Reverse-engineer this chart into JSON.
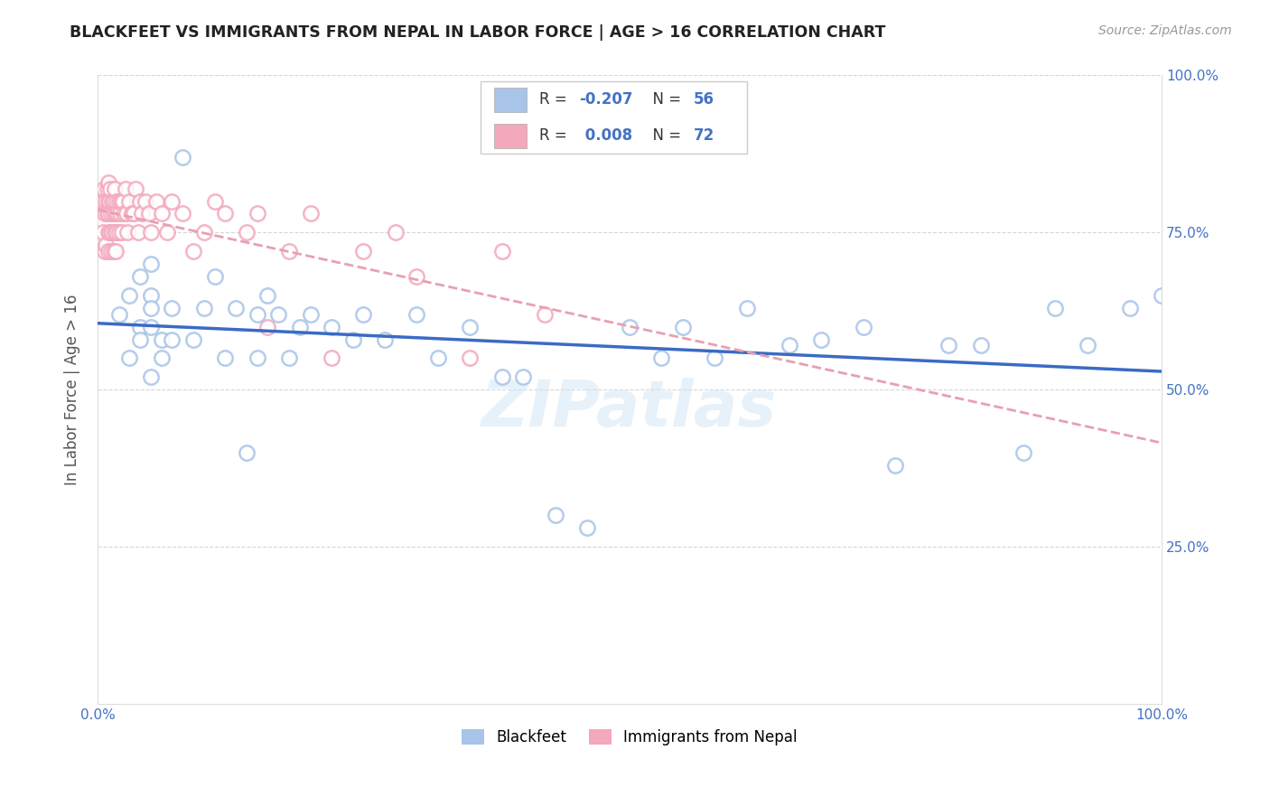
{
  "title": "BLACKFEET VS IMMIGRANTS FROM NEPAL IN LABOR FORCE | AGE > 16 CORRELATION CHART",
  "source": "Source: ZipAtlas.com",
  "ylabel": "In Labor Force | Age > 16",
  "blackfeet_R": -0.207,
  "blackfeet_N": 56,
  "nepal_R": 0.008,
  "nepal_N": 72,
  "blackfeet_color": "#a8c4e8",
  "nepal_color": "#f4a8bc",
  "blackfeet_line_color": "#3a6bc4",
  "nepal_line_color": "#e8a0b0",
  "R_text_color": "#4472c4",
  "background_color": "#ffffff",
  "grid_color": "#cccccc",
  "tick_label_color": "#4472c4",
  "title_color": "#222222",
  "source_color": "#999999",
  "ylabel_color": "#555555",
  "watermark": "ZIPatlas",
  "watermark_color": "#d0e4f4",
  "xlim": [
    0.0,
    1.0
  ],
  "ylim": [
    0.0,
    1.0
  ],
  "blackfeet_x": [
    0.02,
    0.03,
    0.03,
    0.04,
    0.04,
    0.04,
    0.05,
    0.05,
    0.05,
    0.05,
    0.05,
    0.06,
    0.06,
    0.07,
    0.07,
    0.08,
    0.09,
    0.1,
    0.11,
    0.12,
    0.13,
    0.14,
    0.15,
    0.15,
    0.16,
    0.17,
    0.18,
    0.19,
    0.2,
    0.22,
    0.24,
    0.25,
    0.27,
    0.3,
    0.32,
    0.35,
    0.38,
    0.4,
    0.43,
    0.46,
    0.5,
    0.53,
    0.55,
    0.58,
    0.61,
    0.65,
    0.68,
    0.72,
    0.75,
    0.8,
    0.83,
    0.87,
    0.9,
    0.93,
    0.97,
    1.0
  ],
  "blackfeet_y": [
    0.62,
    0.65,
    0.55,
    0.68,
    0.6,
    0.58,
    0.7,
    0.6,
    0.52,
    0.65,
    0.63,
    0.58,
    0.55,
    0.58,
    0.63,
    0.87,
    0.58,
    0.63,
    0.68,
    0.55,
    0.63,
    0.4,
    0.62,
    0.55,
    0.65,
    0.62,
    0.55,
    0.6,
    0.62,
    0.6,
    0.58,
    0.62,
    0.58,
    0.62,
    0.55,
    0.6,
    0.52,
    0.52,
    0.3,
    0.28,
    0.6,
    0.55,
    0.6,
    0.55,
    0.63,
    0.57,
    0.58,
    0.6,
    0.38,
    0.57,
    0.57,
    0.4,
    0.63,
    0.57,
    0.63,
    0.65
  ],
  "nepal_x": [
    0.005,
    0.005,
    0.006,
    0.007,
    0.007,
    0.008,
    0.008,
    0.009,
    0.009,
    0.01,
    0.01,
    0.01,
    0.01,
    0.01,
    0.011,
    0.012,
    0.012,
    0.013,
    0.013,
    0.014,
    0.014,
    0.015,
    0.015,
    0.015,
    0.016,
    0.016,
    0.017,
    0.017,
    0.018,
    0.018,
    0.019,
    0.02,
    0.02,
    0.021,
    0.022,
    0.023,
    0.024,
    0.025,
    0.026,
    0.027,
    0.028,
    0.03,
    0.032,
    0.034,
    0.036,
    0.038,
    0.04,
    0.042,
    0.045,
    0.048,
    0.05,
    0.055,
    0.06,
    0.065,
    0.07,
    0.08,
    0.09,
    0.1,
    0.11,
    0.12,
    0.14,
    0.15,
    0.16,
    0.18,
    0.2,
    0.22,
    0.25,
    0.28,
    0.3,
    0.35,
    0.38,
    0.42
  ],
  "nepal_y": [
    0.8,
    0.75,
    0.82,
    0.78,
    0.72,
    0.8,
    0.73,
    0.78,
    0.82,
    0.83,
    0.8,
    0.78,
    0.75,
    0.72,
    0.8,
    0.82,
    0.75,
    0.78,
    0.72,
    0.8,
    0.75,
    0.8,
    0.78,
    0.72,
    0.82,
    0.75,
    0.78,
    0.72,
    0.8,
    0.75,
    0.78,
    0.8,
    0.75,
    0.78,
    0.8,
    0.75,
    0.8,
    0.78,
    0.82,
    0.78,
    0.75,
    0.8,
    0.78,
    0.78,
    0.82,
    0.75,
    0.8,
    0.78,
    0.8,
    0.78,
    0.75,
    0.8,
    0.78,
    0.75,
    0.8,
    0.78,
    0.72,
    0.75,
    0.8,
    0.78,
    0.75,
    0.78,
    0.6,
    0.72,
    0.78,
    0.55,
    0.72,
    0.75,
    0.68,
    0.55,
    0.72,
    0.62
  ]
}
